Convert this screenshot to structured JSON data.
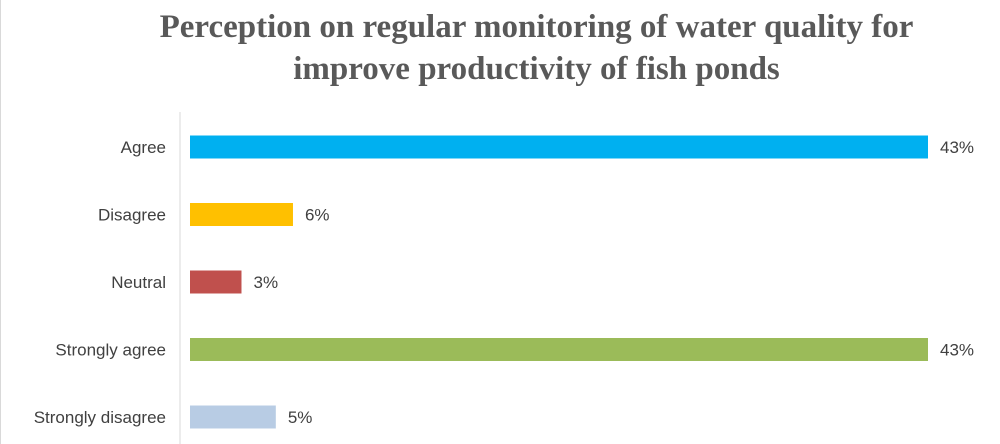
{
  "chart_data": {
    "type": "bar",
    "orientation": "horizontal",
    "title": "Perception on regular monitoring of water quality for improve productivity of fish ponds",
    "title_lines": [
      "Perception on regular monitoring of water quality for",
      "improve productivity of fish ponds"
    ],
    "categories": [
      "Agree",
      "Disagree",
      "Neutral",
      "Strongly agree",
      "Strongly disagree"
    ],
    "values": [
      43,
      6,
      3,
      43,
      5
    ],
    "value_labels": [
      "43%",
      "6%",
      "3%",
      "43%",
      "5%"
    ],
    "colors": [
      "#00b0f0",
      "#ffc000",
      "#c0504d",
      "#9bbb59",
      "#b8cce4"
    ],
    "xlim": [
      0,
      43
    ],
    "xlabel": "",
    "ylabel": "",
    "grid": false,
    "legend": "none"
  }
}
